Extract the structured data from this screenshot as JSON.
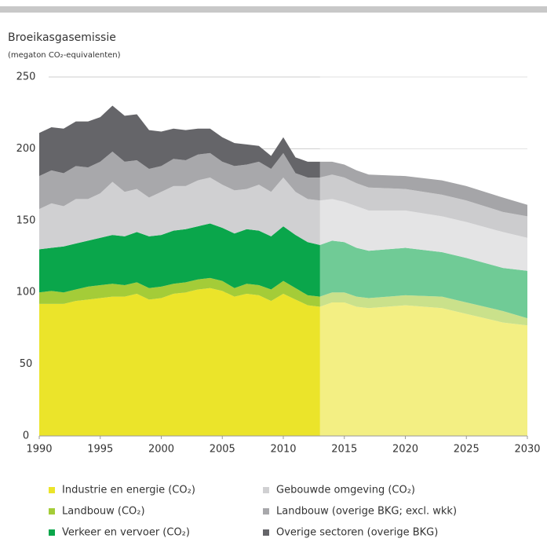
{
  "chart_data": {
    "type": "stacked_area",
    "title": "Broeikasgasemissie",
    "subtitle": "(megaton CO₂-equivalenten)",
    "x": [
      1990,
      1991,
      1992,
      1993,
      1994,
      1995,
      1996,
      1997,
      1998,
      1999,
      2000,
      2001,
      2002,
      2003,
      2004,
      2005,
      2006,
      2007,
      2008,
      2009,
      2010,
      2011,
      2012,
      2013,
      2014,
      2015,
      2016,
      2017,
      2020,
      2023,
      2025,
      2028,
      2030
    ],
    "series": [
      {
        "name": "Industrie en energie  (CO₂)",
        "color": "#ebe42a",
        "values": [
          92,
          92,
          92,
          94,
          95,
          96,
          97,
          97,
          99,
          95,
          96,
          99,
          100,
          102,
          103,
          101,
          97,
          99,
          98,
          94,
          99,
          95,
          91,
          90,
          93,
          93,
          90,
          89,
          91,
          89,
          85,
          79,
          77
        ]
      },
      {
        "name": "Landbouw  (CO₂)",
        "color": "#a4cc38",
        "values": [
          8,
          9,
          8,
          8,
          9,
          9,
          9,
          8,
          8,
          8,
          8,
          7,
          7,
          7,
          7,
          7,
          6,
          7,
          7,
          8,
          9,
          8,
          7,
          7,
          7,
          7,
          7,
          7,
          7,
          8,
          8,
          8,
          5
        ]
      },
      {
        "name": "Verkeer en vervoer  (CO₂)",
        "color": "#0aa64b",
        "values": [
          30,
          30,
          32,
          32,
          32,
          33,
          34,
          34,
          35,
          36,
          36,
          37,
          37,
          37,
          38,
          37,
          38,
          38,
          38,
          37,
          38,
          37,
          37,
          36,
          36,
          35,
          34,
          33,
          33,
          31,
          31,
          30,
          33
        ]
      },
      {
        "name": "Gebouwde omgeving (CO₂)",
        "color": "#d0d0d2",
        "values": [
          28,
          31,
          28,
          31,
          29,
          31,
          37,
          31,
          30,
          27,
          30,
          31,
          30,
          32,
          32,
          30,
          30,
          28,
          32,
          31,
          34,
          30,
          30,
          31,
          29,
          28,
          29,
          28,
          26,
          25,
          25,
          25,
          23
        ]
      },
      {
        "name": "Landbouw (overige BKG; excl. wkk)",
        "color": "#a8a8ab",
        "values": [
          23,
          23,
          23,
          23,
          22,
          22,
          21,
          21,
          20,
          20,
          18,
          19,
          18,
          18,
          17,
          16,
          17,
          17,
          16,
          16,
          17,
          13,
          15,
          16,
          17,
          17,
          16,
          16,
          15,
          15,
          15,
          14,
          15
        ]
      },
      {
        "name": "Overige sectoren (overige BKG)",
        "color": "#656569",
        "values": [
          30,
          30,
          31,
          31,
          32,
          31,
          32,
          32,
          32,
          27,
          24,
          21,
          21,
          18,
          17,
          17,
          16,
          14,
          11,
          9,
          11,
          11,
          11,
          11,
          9,
          9,
          9,
          9,
          9,
          10,
          10,
          10,
          8
        ]
      }
    ],
    "xlim": [
      1990,
      2030
    ],
    "xticks": [
      1990,
      1995,
      2000,
      2005,
      2010,
      2015,
      2020,
      2025,
      2030
    ],
    "ylim": [
      0,
      250
    ],
    "yticks": [
      0,
      50,
      100,
      150,
      200,
      250
    ],
    "grid": true,
    "forecast_from": 2013
  }
}
